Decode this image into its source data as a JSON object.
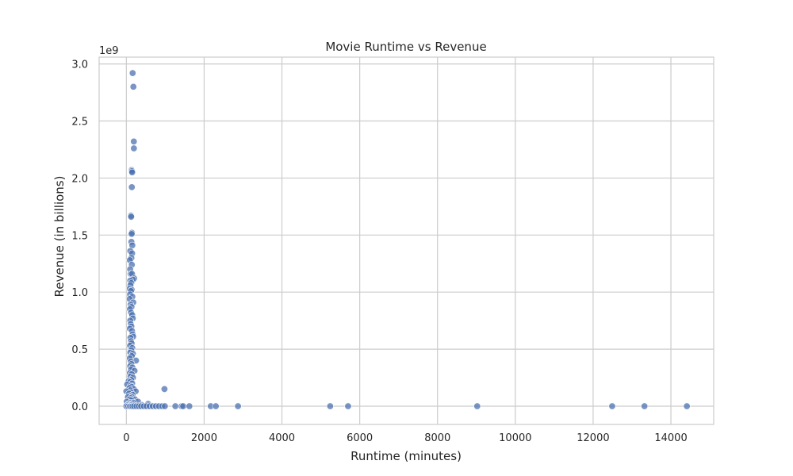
{
  "chart_data": {
    "type": "scatter",
    "title": "Movie Runtime vs Revenue",
    "xlabel": "Runtime (minutes)",
    "ylabel": "Revenue (in billions)",
    "y_offset_label": "1e9",
    "xlim": [
      -700,
      15100
    ],
    "ylim": [
      -0.16,
      3.06
    ],
    "x_ticks": [
      0,
      2000,
      4000,
      6000,
      8000,
      10000,
      12000,
      14000
    ],
    "x_tick_labels": [
      "0",
      "2000",
      "4000",
      "6000",
      "8000",
      "10000",
      "12000",
      "14000"
    ],
    "y_ticks": [
      0.0,
      0.5,
      1.0,
      1.5,
      2.0,
      2.5,
      3.0
    ],
    "y_tick_labels": [
      "0.0",
      "0.5",
      "1.0",
      "1.5",
      "2.0",
      "2.5",
      "3.0"
    ],
    "grid": true,
    "point_color": "#4c72b0",
    "points": [
      {
        "x": 162,
        "y": 2.92
      },
      {
        "x": 181,
        "y": 2.8
      },
      {
        "x": 192,
        "y": 2.32
      },
      {
        "x": 194,
        "y": 2.26
      },
      {
        "x": 136,
        "y": 2.07
      },
      {
        "x": 143,
        "y": 2.06
      },
      {
        "x": 149,
        "y": 2.05
      },
      {
        "x": 141,
        "y": 1.92
      },
      {
        "x": 119,
        "y": 1.67
      },
      {
        "x": 124,
        "y": 1.66
      },
      {
        "x": 143,
        "y": 1.52
      },
      {
        "x": 136,
        "y": 1.51
      },
      {
        "x": 130,
        "y": 1.44
      },
      {
        "x": 153,
        "y": 1.41
      },
      {
        "x": 102,
        "y": 1.36
      },
      {
        "x": 147,
        "y": 1.34
      },
      {
        "x": 130,
        "y": 1.3
      },
      {
        "x": 91,
        "y": 1.28
      },
      {
        "x": 141,
        "y": 1.24
      },
      {
        "x": 98,
        "y": 1.2
      },
      {
        "x": 110,
        "y": 1.16
      },
      {
        "x": 146,
        "y": 1.16
      },
      {
        "x": 201,
        "y": 1.12
      },
      {
        "x": 169,
        "y": 1.11
      },
      {
        "x": 100,
        "y": 1.1
      },
      {
        "x": 126,
        "y": 1.08
      },
      {
        "x": 105,
        "y": 1.06
      },
      {
        "x": 88,
        "y": 1.03
      },
      {
        "x": 139,
        "y": 1.02
      },
      {
        "x": 117,
        "y": 1.01
      },
      {
        "x": 95,
        "y": 0.98
      },
      {
        "x": 154,
        "y": 0.96
      },
      {
        "x": 85,
        "y": 0.94
      },
      {
        "x": 178,
        "y": 0.91
      },
      {
        "x": 108,
        "y": 0.89
      },
      {
        "x": 132,
        "y": 0.87
      },
      {
        "x": 93,
        "y": 0.85
      },
      {
        "x": 120,
        "y": 0.82
      },
      {
        "x": 150,
        "y": 0.8
      },
      {
        "x": 165,
        "y": 0.77
      },
      {
        "x": 100,
        "y": 0.75
      },
      {
        "x": 112,
        "y": 0.72
      },
      {
        "x": 128,
        "y": 0.7
      },
      {
        "x": 90,
        "y": 0.68
      },
      {
        "x": 145,
        "y": 0.66
      },
      {
        "x": 160,
        "y": 0.63
      },
      {
        "x": 175,
        "y": 0.61
      },
      {
        "x": 105,
        "y": 0.6
      },
      {
        "x": 118,
        "y": 0.57
      },
      {
        "x": 135,
        "y": 0.55
      },
      {
        "x": 96,
        "y": 0.53
      },
      {
        "x": 152,
        "y": 0.51
      },
      {
        "x": 125,
        "y": 0.49
      },
      {
        "x": 102,
        "y": 0.47
      },
      {
        "x": 168,
        "y": 0.46
      },
      {
        "x": 140,
        "y": 0.44
      },
      {
        "x": 88,
        "y": 0.42
      },
      {
        "x": 248,
        "y": 0.4
      },
      {
        "x": 114,
        "y": 0.39
      },
      {
        "x": 130,
        "y": 0.37
      },
      {
        "x": 98,
        "y": 0.35
      },
      {
        "x": 155,
        "y": 0.34
      },
      {
        "x": 120,
        "y": 0.32
      },
      {
        "x": 210,
        "y": 0.31
      },
      {
        "x": 90,
        "y": 0.29
      },
      {
        "x": 140,
        "y": 0.28
      },
      {
        "x": 106,
        "y": 0.26
      },
      {
        "x": 170,
        "y": 0.25
      },
      {
        "x": 125,
        "y": 0.23
      },
      {
        "x": 60,
        "y": 0.22
      },
      {
        "x": 95,
        "y": 0.21
      },
      {
        "x": 150,
        "y": 0.2
      },
      {
        "x": 20,
        "y": 0.19
      },
      {
        "x": 112,
        "y": 0.18
      },
      {
        "x": 135,
        "y": 0.17
      },
      {
        "x": 80,
        "y": 0.16
      },
      {
        "x": 190,
        "y": 0.15
      },
      {
        "x": 100,
        "y": 0.14
      },
      {
        "x": 240,
        "y": 0.13
      },
      {
        "x": 0,
        "y": 0.13
      },
      {
        "x": 120,
        "y": 0.12
      },
      {
        "x": 70,
        "y": 0.11
      },
      {
        "x": 160,
        "y": 0.1
      },
      {
        "x": 95,
        "y": 0.09
      },
      {
        "x": 40,
        "y": 0.08
      },
      {
        "x": 140,
        "y": 0.08
      },
      {
        "x": 110,
        "y": 0.07
      },
      {
        "x": 220,
        "y": 0.06
      },
      {
        "x": 85,
        "y": 0.06
      },
      {
        "x": 130,
        "y": 0.05
      },
      {
        "x": 300,
        "y": 0.04
      },
      {
        "x": 10,
        "y": 0.04
      },
      {
        "x": 100,
        "y": 0.03
      },
      {
        "x": 180,
        "y": 0.03
      },
      {
        "x": 60,
        "y": 0.02
      },
      {
        "x": 560,
        "y": 0.02
      },
      {
        "x": 150,
        "y": 0.02
      },
      {
        "x": 30,
        "y": 0.01
      },
      {
        "x": 400,
        "y": 0.01
      },
      {
        "x": 120,
        "y": 0.01
      },
      {
        "x": 980,
        "y": 0.15
      },
      {
        "x": 0,
        "y": 0.0
      },
      {
        "x": 50,
        "y": 0.0
      },
      {
        "x": 90,
        "y": 0.0
      },
      {
        "x": 120,
        "y": 0.0
      },
      {
        "x": 160,
        "y": 0.0
      },
      {
        "x": 200,
        "y": 0.0
      },
      {
        "x": 260,
        "y": 0.0
      },
      {
        "x": 320,
        "y": 0.0
      },
      {
        "x": 380,
        "y": 0.0
      },
      {
        "x": 450,
        "y": 0.0
      },
      {
        "x": 520,
        "y": 0.0
      },
      {
        "x": 600,
        "y": 0.0
      },
      {
        "x": 680,
        "y": 0.0
      },
      {
        "x": 760,
        "y": 0.0
      },
      {
        "x": 840,
        "y": 0.0
      },
      {
        "x": 920,
        "y": 0.0
      },
      {
        "x": 990,
        "y": 0.0
      },
      {
        "x": 1260,
        "y": 0.0
      },
      {
        "x": 1420,
        "y": 0.0
      },
      {
        "x": 1460,
        "y": 0.0
      },
      {
        "x": 1620,
        "y": 0.0
      },
      {
        "x": 2170,
        "y": 0.0
      },
      {
        "x": 2300,
        "y": 0.0
      },
      {
        "x": 2870,
        "y": 0.0
      },
      {
        "x": 5240,
        "y": 0.0
      },
      {
        "x": 5700,
        "y": 0.0
      },
      {
        "x": 9020,
        "y": 0.0
      },
      {
        "x": 12490,
        "y": 0.0
      },
      {
        "x": 13320,
        "y": 0.0
      },
      {
        "x": 14410,
        "y": 0.0
      }
    ]
  }
}
